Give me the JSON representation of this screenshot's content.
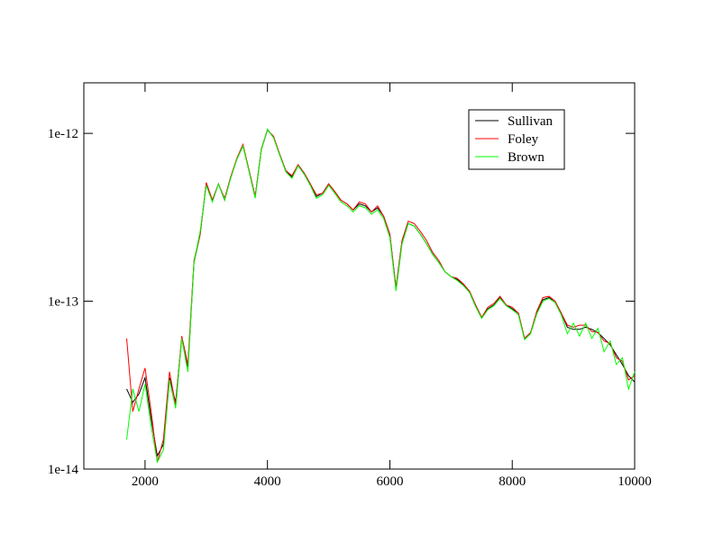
{
  "chart_data": {
    "type": "line",
    "yscale": "log",
    "legend": "upper right",
    "xlim": [
      1000,
      10000
    ],
    "ylim": [
      1e-14,
      2e-12
    ],
    "xticks": [
      2000,
      4000,
      6000,
      8000,
      10000
    ],
    "yticks": [
      {
        "value": 1e-14,
        "label": "1e-14"
      },
      {
        "value": 1e-13,
        "label": "1e-13"
      },
      {
        "value": 1e-12,
        "label": "1e-12"
      }
    ],
    "x": [
      1700,
      1800,
      1900,
      2000,
      2100,
      2200,
      2300,
      2400,
      2500,
      2600,
      2700,
      2800,
      2900,
      3000,
      3100,
      3200,
      3300,
      3400,
      3500,
      3600,
      3700,
      3800,
      3900,
      4000,
      4100,
      4200,
      4300,
      4400,
      4500,
      4600,
      4700,
      4800,
      4900,
      5000,
      5100,
      5200,
      5300,
      5400,
      5500,
      5600,
      5700,
      5800,
      5900,
      6000,
      6100,
      6200,
      6300,
      6400,
      6500,
      6600,
      6700,
      6800,
      6900,
      7000,
      7100,
      7200,
      7300,
      7400,
      7500,
      7600,
      7700,
      7800,
      7900,
      8000,
      8100,
      8200,
      8300,
      8400,
      8500,
      8600,
      8700,
      8800,
      8900,
      9000,
      9100,
      9200,
      9300,
      9400,
      9500,
      9600,
      9700,
      9800,
      9900,
      10000
    ],
    "series": [
      {
        "name": "Sullivan",
        "color": "#000000",
        "values": [
          3e-14,
          2.5e-14,
          2.8e-14,
          3.5e-14,
          2e-14,
          1.2e-14,
          1.4e-14,
          3.5e-14,
          2.5e-14,
          6e-14,
          4e-14,
          1.7e-13,
          2.5e-13,
          5e-13,
          4e-13,
          5e-13,
          4e-13,
          5.5e-13,
          7e-13,
          8.5e-13,
          6e-13,
          4.2e-13,
          8e-13,
          1.05e-12,
          9.5e-13,
          7.5e-13,
          6e-13,
          5.5e-13,
          6.5e-13,
          5.8e-13,
          5e-13,
          4.2e-13,
          4.4e-13,
          5e-13,
          4.5e-13,
          4e-13,
          3.8e-13,
          3.5e-13,
          3.8e-13,
          3.7e-13,
          3.4e-13,
          3.6e-13,
          3.2e-13,
          2.5e-13,
          1.2e-13,
          2.3e-13,
          2.9e-13,
          2.8e-13,
          2.5e-13,
          2.2e-13,
          1.9e-13,
          1.7e-13,
          1.5e-13,
          1.4e-13,
          1.35e-13,
          1.25e-13,
          1.15e-13,
          9.5e-14,
          8e-14,
          9e-14,
          9.5e-14,
          1.05e-13,
          9.5e-14,
          9e-14,
          8.5e-14,
          6e-14,
          6.5e-14,
          8.5e-14,
          1.02e-13,
          1.05e-13,
          1e-13,
          8.5e-14,
          7e-14,
          6.8e-14,
          6.8e-14,
          7e-14,
          6.8e-14,
          6.5e-14,
          6e-14,
          5.5e-14,
          4.8e-14,
          4.2e-14,
          3.6e-14,
          3.3e-14
        ]
      },
      {
        "name": "Foley",
        "color": "#ff0000",
        "values": [
          6e-14,
          2.2e-14,
          3e-14,
          4e-14,
          2.2e-14,
          1.1e-14,
          1.5e-14,
          3.8e-14,
          2.4e-14,
          6.2e-14,
          4.2e-14,
          1.75e-13,
          2.5e-13,
          5.1e-13,
          4e-13,
          5e-13,
          4.1e-13,
          5.5e-13,
          7.1e-13,
          8.6e-13,
          6e-13,
          4.2e-13,
          8.1e-13,
          1.05e-12,
          9.6e-13,
          7.5e-13,
          6e-13,
          5.6e-13,
          6.5e-13,
          5.8e-13,
          5e-13,
          4.3e-13,
          4.4e-13,
          5e-13,
          4.5e-13,
          4e-13,
          3.8e-13,
          3.5e-13,
          3.9e-13,
          3.8e-13,
          3.4e-13,
          3.7e-13,
          3.2e-13,
          2.5e-13,
          1.2e-13,
          2.3e-13,
          3e-13,
          2.9e-13,
          2.6e-13,
          2.3e-13,
          1.95e-13,
          1.75e-13,
          1.5e-13,
          1.4e-13,
          1.37e-13,
          1.27e-13,
          1.15e-13,
          9.5e-14,
          8e-14,
          9.2e-14,
          9.7e-14,
          1.07e-13,
          9.5e-14,
          9.2e-14,
          8.5e-14,
          6e-14,
          6.5e-14,
          8.7e-14,
          1.05e-13,
          1.07e-13,
          1e-13,
          8.5e-14,
          7.2e-14,
          7e-14,
          7.2e-14,
          7.2e-14,
          6.6e-14,
          6.5e-14,
          5.8e-14,
          5.6e-14,
          4.6e-14,
          4.4e-14,
          3.4e-14,
          3.6e-14
        ]
      },
      {
        "name": "Brown",
        "color": "#00ff00",
        "values": [
          1.5e-14,
          3e-14,
          2.2e-14,
          3.2e-14,
          1.8e-14,
          1.1e-14,
          1.3e-14,
          3.4e-14,
          2.3e-14,
          6e-14,
          3.8e-14,
          1.7e-13,
          2.6e-13,
          4.9e-13,
          3.9e-13,
          5e-13,
          4e-13,
          5.4e-13,
          7e-13,
          8.4e-13,
          5.9e-13,
          4.1e-13,
          8e-13,
          1.06e-12,
          9.4e-13,
          7.4e-13,
          5.9e-13,
          5.4e-13,
          6.4e-13,
          5.7e-13,
          4.9e-13,
          4.1e-13,
          4.3e-13,
          4.9e-13,
          4.4e-13,
          3.9e-13,
          3.7e-13,
          3.4e-13,
          3.7e-13,
          3.6e-13,
          3.3e-13,
          3.5e-13,
          3.1e-13,
          2.4e-13,
          1.15e-13,
          2.2e-13,
          2.9e-13,
          2.8e-13,
          2.5e-13,
          2.2e-13,
          1.9e-13,
          1.7e-13,
          1.5e-13,
          1.4e-13,
          1.33e-13,
          1.24e-13,
          1.13e-13,
          9.3e-14,
          7.9e-14,
          8.9e-14,
          9.4e-14,
          1.04e-13,
          9.4e-14,
          8.9e-14,
          8.3e-14,
          5.9e-14,
          6.4e-14,
          8.4e-14,
          1e-13,
          1.04e-13,
          9.8e-14,
          8.3e-14,
          6.4e-14,
          7.4e-14,
          6.2e-14,
          7.4e-14,
          6e-14,
          6.9e-14,
          5e-14,
          5.8e-14,
          4.2e-14,
          4.6e-14,
          3e-14,
          3.8e-14
        ]
      }
    ]
  }
}
